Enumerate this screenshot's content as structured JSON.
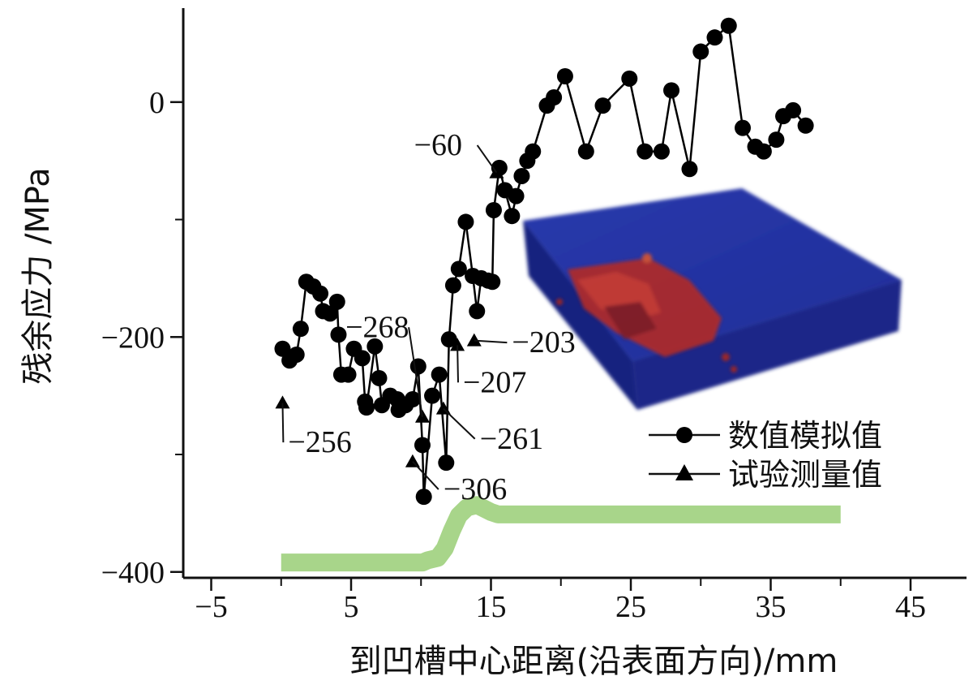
{
  "chart_data": {
    "type": "line",
    "xlabel": "到凹槽中心距离(沿表面方向)/mm",
    "ylabel": "残余应力 /MPa",
    "xlim": [
      -7,
      49
    ],
    "ylim": [
      -405,
      80
    ],
    "x_ticks": [
      -5,
      5,
      15,
      25,
      35,
      45
    ],
    "y_ticks": [
      0,
      -200,
      -400
    ],
    "x_tick_labels": [
      "−5",
      "5",
      "15",
      "25",
      "35",
      "45"
    ],
    "y_tick_labels": [
      "0",
      "−200",
      "−400"
    ],
    "grid": false,
    "legend_position": "lower-right",
    "series": [
      {
        "name": "数值模拟值",
        "marker": "circle",
        "color": "#000000",
        "points": [
          [
            0.1,
            -210
          ],
          [
            0.6,
            -220
          ],
          [
            1.1,
            -215
          ],
          [
            1.4,
            -193
          ],
          [
            1.8,
            -153
          ],
          [
            2.3,
            -157
          ],
          [
            2.8,
            -163
          ],
          [
            3.0,
            -178
          ],
          [
            3.5,
            -180
          ],
          [
            4.0,
            -170
          ],
          [
            4.1,
            -198
          ],
          [
            4.3,
            -232
          ],
          [
            4.8,
            -232
          ],
          [
            5.2,
            -210
          ],
          [
            5.8,
            -218
          ],
          [
            6.0,
            -255
          ],
          [
            6.1,
            -260
          ],
          [
            6.7,
            -208
          ],
          [
            7.0,
            -235
          ],
          [
            7.2,
            -258
          ],
          [
            7.8,
            -250
          ],
          [
            8.3,
            -253
          ],
          [
            8.4,
            -262
          ],
          [
            8.9,
            -258
          ],
          [
            9.4,
            -253
          ],
          [
            9.8,
            -225
          ],
          [
            10.1,
            -292
          ],
          [
            10.2,
            -336
          ],
          [
            10.8,
            -250
          ],
          [
            11.3,
            -232
          ],
          [
            11.8,
            -307
          ],
          [
            12.0,
            -202
          ],
          [
            12.3,
            -156
          ],
          [
            12.7,
            -142
          ],
          [
            13.2,
            -102
          ],
          [
            13.7,
            -148
          ],
          [
            14.0,
            -178
          ],
          [
            14.3,
            -150
          ],
          [
            14.8,
            -152
          ],
          [
            15.1,
            -153
          ],
          [
            15.2,
            -92
          ],
          [
            15.6,
            -56
          ],
          [
            16.0,
            -75
          ],
          [
            16.5,
            -97
          ],
          [
            16.8,
            -80
          ],
          [
            17.2,
            -63
          ],
          [
            17.6,
            -50
          ],
          [
            18.0,
            -42
          ],
          [
            19.0,
            -3
          ],
          [
            19.5,
            4
          ],
          [
            20.3,
            22
          ],
          [
            21.8,
            -42
          ],
          [
            23.0,
            -3
          ],
          [
            24.9,
            20
          ],
          [
            26.0,
            -42
          ],
          [
            27.2,
            -42
          ],
          [
            27.9,
            10
          ],
          [
            29.2,
            -57
          ],
          [
            30.0,
            43
          ],
          [
            31.0,
            55
          ],
          [
            32.0,
            65
          ],
          [
            33.0,
            -22
          ],
          [
            33.9,
            -38
          ],
          [
            34.5,
            -42
          ],
          [
            35.4,
            -32
          ],
          [
            35.9,
            -12
          ],
          [
            36.6,
            -7
          ],
          [
            37.5,
            -20
          ]
        ]
      },
      {
        "name": "试验测量值",
        "marker": "triangle",
        "color": "#000000",
        "points": [
          [
            0.1,
            -256
          ],
          [
            9.4,
            -306
          ],
          [
            10.1,
            -268
          ],
          [
            11.6,
            -261
          ],
          [
            12.6,
            -207
          ],
          [
            13.8,
            -203
          ],
          [
            15.4,
            -60
          ]
        ]
      }
    ],
    "annotations": [
      {
        "text": "−60",
        "point": [
          15.4,
          -60
        ],
        "label_pos": [
          9.5,
          -45
        ]
      },
      {
        "text": "−268",
        "point": [
          10.1,
          -268
        ],
        "label_pos": [
          4.6,
          -200
        ]
      },
      {
        "text": "−203",
        "point": [
          13.8,
          -203
        ],
        "label_pos": [
          16.5,
          -213
        ]
      },
      {
        "text": "−207",
        "point": [
          12.6,
          -207
        ],
        "label_pos": [
          13.0,
          -247
        ]
      },
      {
        "text": "−256",
        "point": [
          0.1,
          -256
        ],
        "label_pos": [
          0.5,
          -298
        ]
      },
      {
        "text": "−261",
        "point": [
          11.6,
          -261
        ],
        "label_pos": [
          14.2,
          -295
        ]
      },
      {
        "text": "−306",
        "point": [
          9.4,
          -306
        ],
        "label_pos": [
          11.6,
          -338
        ]
      }
    ],
    "groove_profile": {
      "color": "#a8d58a",
      "points": [
        [
          0,
          -392
        ],
        [
          10.1,
          -392
        ],
        [
          10.5,
          -390
        ],
        [
          11.2,
          -388
        ],
        [
          11.7,
          -380
        ],
        [
          12.2,
          -365
        ],
        [
          12.7,
          -352
        ],
        [
          13.3,
          -345
        ],
        [
          14.0,
          -343
        ],
        [
          15.0,
          -349
        ],
        [
          15.5,
          -351
        ],
        [
          40.0,
          -351
        ]
      ]
    },
    "inset_image": {
      "description": "3D stress volume render",
      "box_color": "#1e2ea2",
      "hot_color": "#c8281c"
    }
  }
}
